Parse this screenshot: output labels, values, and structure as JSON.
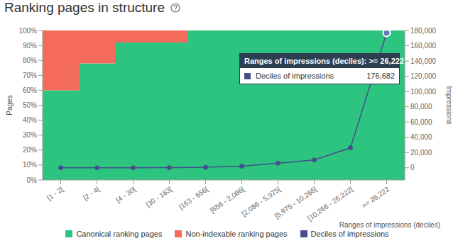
{
  "chart_data": {
    "type": "bar",
    "title": "Ranking pages in structure",
    "x_label": "Ranges of impressions (deciles)",
    "y_label": "Pages",
    "y2_label": "Impressions",
    "categories": [
      "[1 - 2[",
      "[2 - 4[",
      "[4 - 30[",
      "[30 - 163[",
      "[163 - 656[",
      "[656 - 2,086[",
      "[2,086 - 5,975[",
      "[5,975 - 10,266[",
      "[10,266 - 26,222[",
      ">= 26,222"
    ],
    "series": [
      {
        "name": "Canonical ranking pages",
        "color": "#2dc47f",
        "values": [
          60,
          78,
          92,
          92,
          100,
          100,
          100,
          100,
          100,
          100
        ]
      },
      {
        "name": "Non-indexable ranking pages",
        "color": "#f56b5c",
        "values": [
          40,
          22,
          8,
          8,
          0,
          0,
          0,
          0,
          0,
          0
        ]
      },
      {
        "name": "Deciles of impressions",
        "type": "line",
        "axis": "y2",
        "color": "#454f8e",
        "marker": "circle",
        "values": [
          2,
          4,
          30,
          163,
          656,
          2086,
          5975,
          10266,
          26222,
          176682
        ]
      }
    ],
    "stacked": true,
    "ylim": [
      0,
      100
    ],
    "yticks": [
      {
        "value": 0,
        "label": "0%"
      },
      {
        "value": 10,
        "label": "10%"
      },
      {
        "value": 20,
        "label": "20%"
      },
      {
        "value": 30,
        "label": "30%"
      },
      {
        "value": 40,
        "label": "40%"
      },
      {
        "value": 50,
        "label": "50%"
      },
      {
        "value": 60,
        "label": "60%"
      },
      {
        "value": 70,
        "label": "70%"
      },
      {
        "value": 80,
        "label": "80%"
      },
      {
        "value": 90,
        "label": "90%"
      },
      {
        "value": 100,
        "label": "100%"
      }
    ],
    "y2lim": [
      -16000,
      180000
    ],
    "y2ticks": [
      0,
      {
        "value": 20000,
        "label": "20,000"
      },
      {
        "value": 40000,
        "label": "40,000"
      },
      {
        "value": 60000,
        "label": "60,000"
      },
      {
        "value": 80000,
        "label": "80,000"
      },
      {
        "value": 100000,
        "label": "100,000"
      },
      {
        "value": 120000,
        "label": "120,000"
      },
      {
        "value": 140000,
        "label": "140,000"
      },
      {
        "value": 160000,
        "label": "160,000"
      },
      {
        "value": 180000,
        "label": "180,000"
      }
    ],
    "legend": "bottom",
    "grid": false,
    "tooltip": {
      "title": "Ranges of impressions (deciles): >= 26,222",
      "value": 176682
    }
  }
}
